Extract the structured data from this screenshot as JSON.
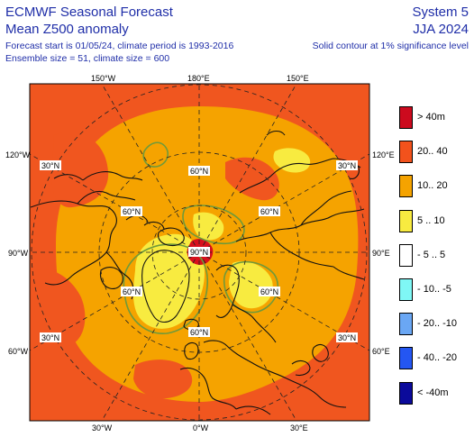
{
  "header": {
    "title": "ECMWF Seasonal Forecast",
    "subtitle": "Mean Z500 anomaly",
    "forecast_info": "Forecast start is 01/05/24, climate period is 1993-2016",
    "ensemble_info": "Ensemble size = 51, climate size = 600",
    "system": "System 5",
    "season": "JJA 2024",
    "contour_note": "Solid contour at 1% significance level"
  },
  "map": {
    "top_labels": [
      "150°W",
      "180°E",
      "150°E"
    ],
    "bottom_labels": [
      "30°W",
      "0°W",
      "30°E"
    ],
    "left_labels": [
      "120°W",
      "90°W",
      "60°W"
    ],
    "right_labels": [
      "120°E",
      "90°E",
      "60°E"
    ],
    "lat_labels": {
      "s30": "30°N",
      "s60": "60°N",
      "s90": "90°N"
    },
    "colors": {
      "ocean_bg": "#f5a300",
      "warm": "#f0561f",
      "light": "#f8eb40",
      "hot": "#d8101c",
      "sig_contour": "#6f9a3a"
    }
  },
  "legend": [
    {
      "label": "> 40m",
      "color": "#cc0a1e"
    },
    {
      "label": "20.. 40",
      "color": "#f2521c"
    },
    {
      "label": "10.. 20",
      "color": "#f5a300"
    },
    {
      "label": "5 .. 10",
      "color": "#f8eb40"
    },
    {
      "label": "- 5 .. 5",
      "color": "#ffffff"
    },
    {
      "label": "- 10.. -5",
      "color": "#7ff7f5"
    },
    {
      "label": "- 20.. -10",
      "color": "#6aa7f4"
    },
    {
      "label": "- 40.. -20",
      "color": "#2456f2"
    },
    {
      "label": "< -40m",
      "color": "#0b0a9b"
    }
  ]
}
